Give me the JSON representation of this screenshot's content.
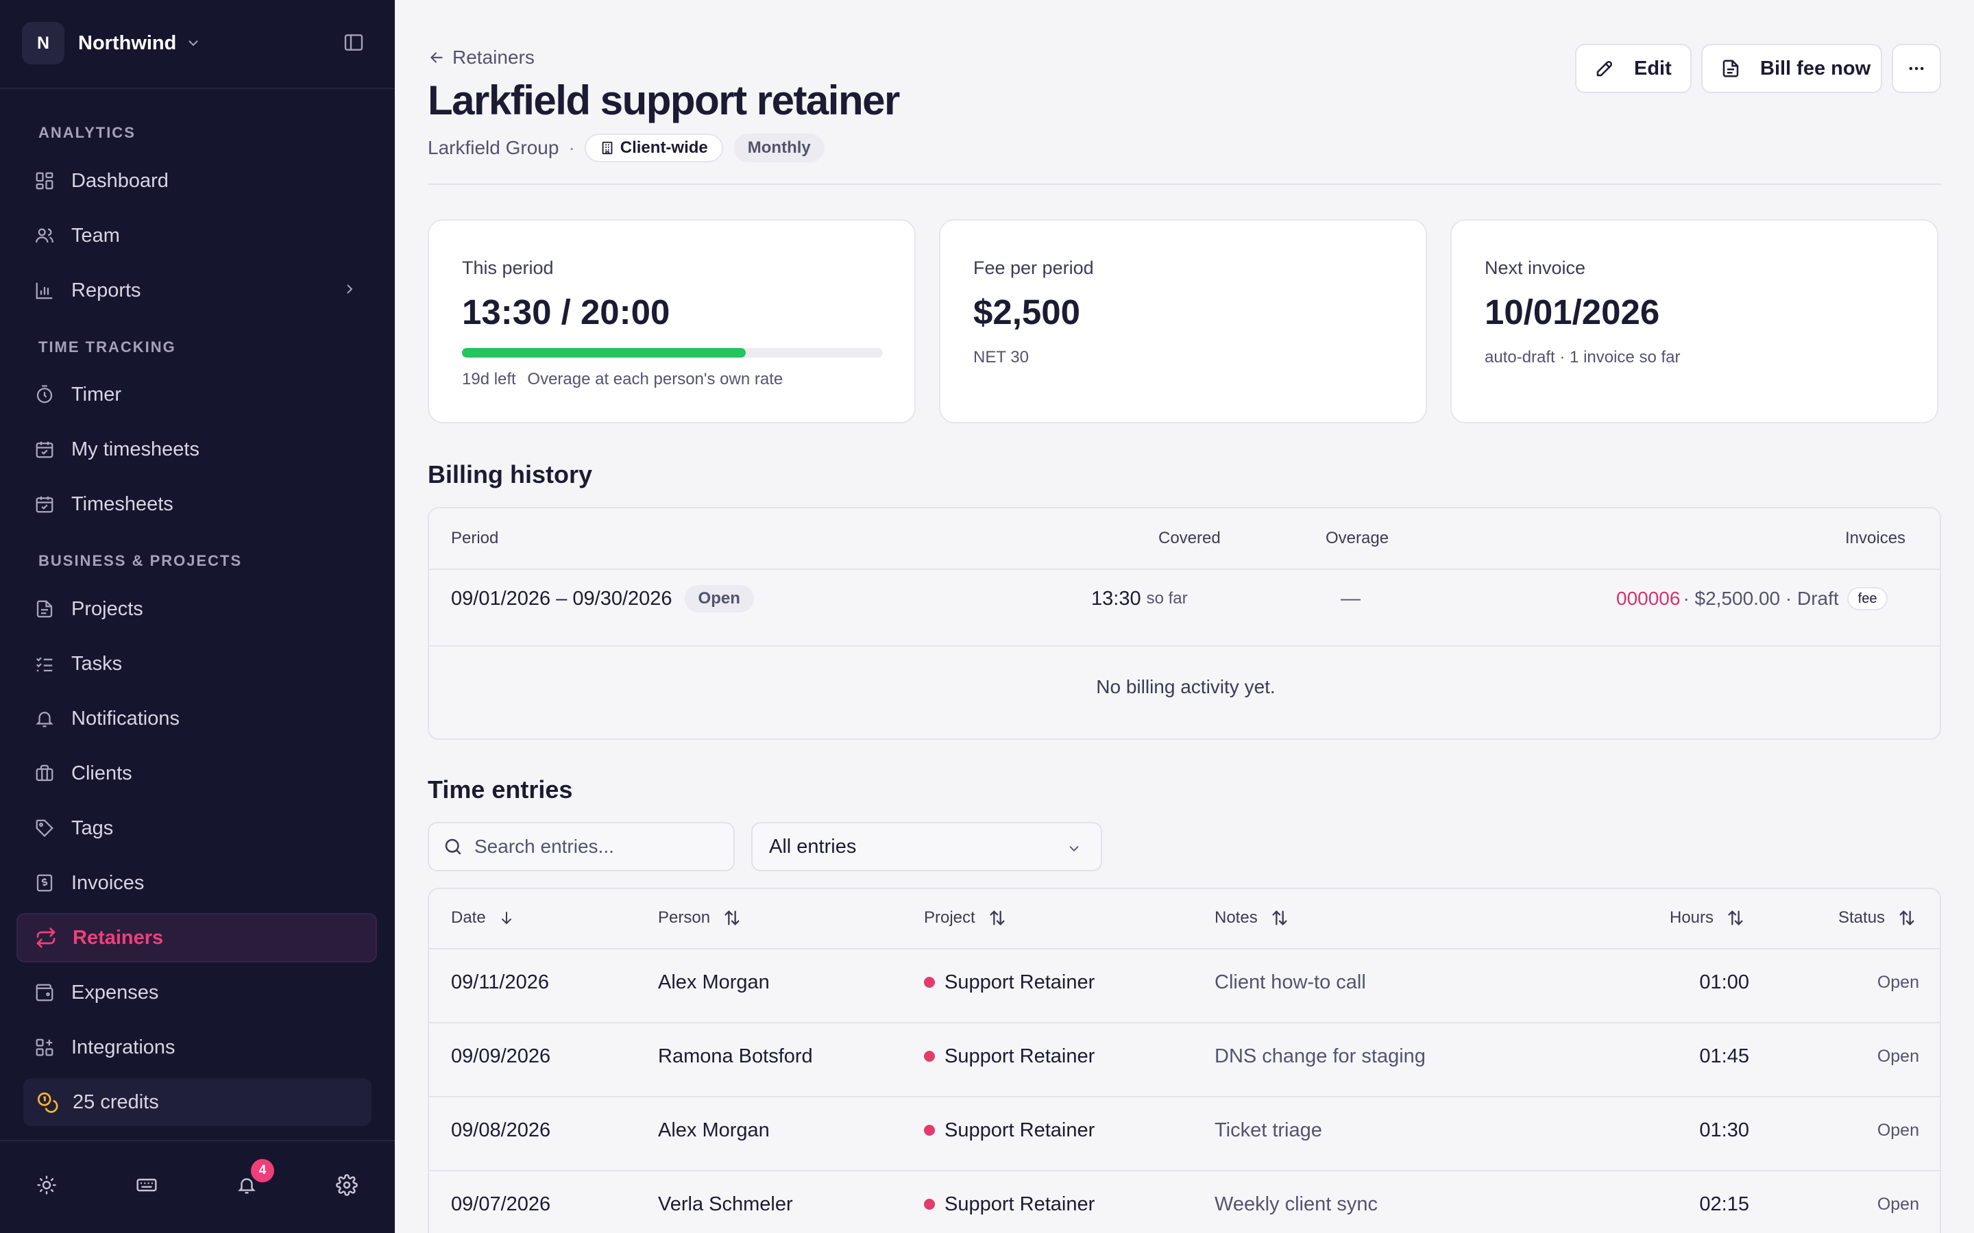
{
  "workspace": {
    "initial": "N",
    "name": "Northwind"
  },
  "sidebar": {
    "sections": [
      "ANALYTICS",
      "TIME TRACKING",
      "BUSINESS & PROJECTS"
    ],
    "items": [
      {
        "label": "Dashboard",
        "icon": "dashboard-icon"
      },
      {
        "label": "Team",
        "icon": "team-icon"
      },
      {
        "label": "Reports",
        "icon": "reports-icon"
      },
      {
        "label": "Timer",
        "icon": "timer-icon"
      },
      {
        "label": "My timesheets",
        "icon": "calendar-check-icon"
      },
      {
        "label": "Timesheets",
        "icon": "calendar-check-icon"
      },
      {
        "label": "Projects",
        "icon": "document-icon"
      },
      {
        "label": "Tasks",
        "icon": "checklist-icon"
      },
      {
        "label": "Notifications",
        "icon": "bell-icon"
      },
      {
        "label": "Clients",
        "icon": "briefcase-icon"
      },
      {
        "label": "Tags",
        "icon": "tag-icon"
      },
      {
        "label": "Invoices",
        "icon": "invoice-icon"
      },
      {
        "label": "Retainers",
        "icon": "repeat-icon"
      },
      {
        "label": "Expenses",
        "icon": "wallet-icon"
      },
      {
        "label": "Integrations",
        "icon": "integrations-icon"
      }
    ],
    "active": "Retainers",
    "credits": "25 credits",
    "notification_count": "4"
  },
  "page": {
    "back_label": "Retainers",
    "title": "Larkfield support retainer",
    "client": "Larkfield Group",
    "separator": "·",
    "scope_chip": "Client-wide",
    "frequency_chip": "Monthly",
    "edit_label": "Edit",
    "bill_label": "Bill fee now"
  },
  "cards": {
    "period": {
      "label": "This period",
      "value": "13:30 / 20:00",
      "progress": 0.675,
      "left": "19d left",
      "note": "Overage at each person's own rate"
    },
    "fee": {
      "label": "Fee per period",
      "value": "$2,500",
      "note": "NET 30"
    },
    "next": {
      "label": "Next invoice",
      "value": "10/01/2026",
      "note": "auto-draft · 1 invoice so far"
    }
  },
  "billing": {
    "title": "Billing history",
    "headers": {
      "period": "Period",
      "covered": "Covered",
      "overage": "Overage",
      "invoices": "Invoices"
    },
    "row": {
      "period": "09/01/2026 – 09/30/2026",
      "status": "Open",
      "covered": "13:30",
      "covered_suffix": "so far",
      "overage": "—",
      "invoice_number": "000006",
      "invoice_amount": "· $2,500.00 · Draft",
      "invoice_tag": "fee"
    },
    "empty": "No billing activity yet."
  },
  "entries": {
    "title": "Time entries",
    "search_placeholder": "Search entries...",
    "filter": "All entries",
    "headers": {
      "date": "Date",
      "person": "Person",
      "project": "Project",
      "notes": "Notes",
      "hours": "Hours",
      "status": "Status"
    },
    "rows": [
      {
        "date": "09/11/2026",
        "person": "Alex Morgan",
        "project": "Support Retainer",
        "notes": "Client how-to call",
        "hours": "01:00",
        "status": "Open"
      },
      {
        "date": "09/09/2026",
        "person": "Ramona Botsford",
        "project": "Support Retainer",
        "notes": "DNS change for staging",
        "hours": "01:45",
        "status": "Open"
      },
      {
        "date": "09/08/2026",
        "person": "Alex Morgan",
        "project": "Support Retainer",
        "notes": "Ticket triage",
        "hours": "01:30",
        "status": "Open"
      },
      {
        "date": "09/07/2026",
        "person": "Verla Schmeler",
        "project": "Support Retainer",
        "notes": "Weekly client sync",
        "hours": "02:15",
        "status": "Open"
      }
    ]
  },
  "colors": {
    "accent": "#ef3f7b",
    "progress": "#22c55e",
    "sidebar_bg": "#16152e",
    "invoice_link": "#d6336c"
  }
}
